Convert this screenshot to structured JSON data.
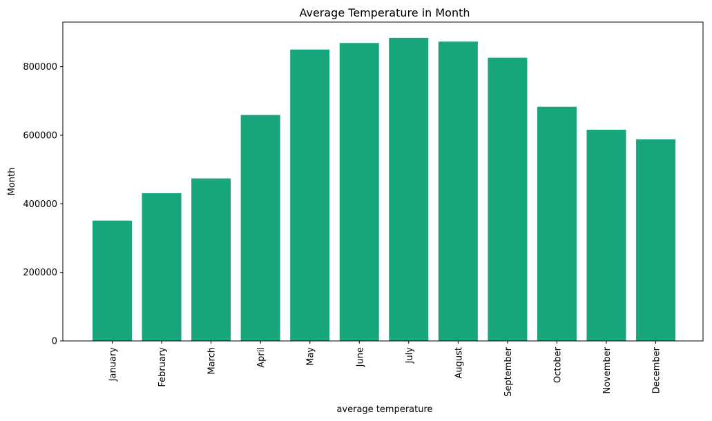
{
  "chart_data": {
    "type": "bar",
    "title": "Average Temperature in  Month",
    "xlabel": "average temperature",
    "ylabel": "Month",
    "categories": [
      "January",
      "February",
      "March",
      "April",
      "May",
      "June",
      "July",
      "August",
      "September",
      "October",
      "November",
      "December"
    ],
    "values": [
      351000,
      431000,
      474000,
      659000,
      850000,
      869000,
      884000,
      873000,
      826000,
      683000,
      616000,
      588000
    ],
    "ylim": [
      0,
      930000
    ],
    "yticks": [
      0,
      200000,
      400000,
      600000,
      800000
    ],
    "bar_color": "#19a57b",
    "grid": false,
    "legend": "none"
  }
}
